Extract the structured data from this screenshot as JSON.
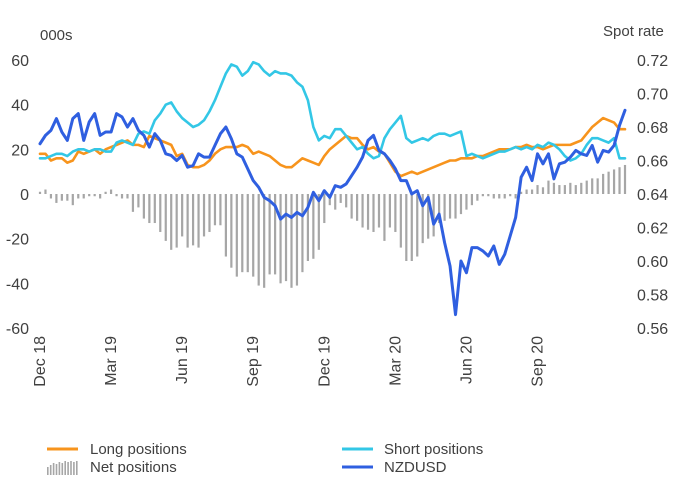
{
  "chart_data": {
    "type": "line",
    "left_axis_unit": "000s",
    "right_axis_unit": "Spot rate",
    "left_ylim": [
      -60,
      60
    ],
    "left_yticks": [
      "60",
      "40",
      "20",
      "0",
      "-20",
      "-40",
      "-60"
    ],
    "right_ylim": [
      0.56,
      0.72
    ],
    "right_yticks": [
      "0.72",
      "0.70",
      "0.68",
      "0.66",
      "0.64",
      "0.62",
      "0.60",
      "0.58",
      "0.56"
    ],
    "x_range": [
      0,
      107
    ],
    "x_ticks": [
      {
        "label": "Dec 18",
        "x": 0
      },
      {
        "label": "Mar 19",
        "x": 13
      },
      {
        "label": "Jun 19",
        "x": 26
      },
      {
        "label": "Sep 19",
        "x": 39
      },
      {
        "label": "Dec 19",
        "x": 52
      },
      {
        "label": "Mar 20",
        "x": 65
      },
      {
        "label": "Jun 20",
        "x": 78
      },
      {
        "label": "Sep 20",
        "x": 91
      }
    ],
    "x_unit": "week index (weekly observations from Dec 2018)",
    "grid": false,
    "legend_position": "bottom",
    "colors": {
      "long": "#f7941d",
      "short": "#33c7e6",
      "net": "#a6a6a6",
      "nzdusd": "#2f5fe0",
      "text": "#404040"
    },
    "series": [
      {
        "name": "Long positions",
        "axis": "left",
        "style": "line",
        "values": [
          18,
          18,
          15,
          16,
          16,
          14,
          15,
          19,
          18,
          19,
          20,
          18,
          20,
          21,
          22,
          23,
          24,
          22,
          22,
          21,
          26,
          25,
          24,
          23,
          22,
          17,
          18,
          13,
          12,
          12,
          13,
          15,
          18,
          20,
          21,
          21,
          21,
          22,
          21,
          18,
          19,
          18,
          17,
          15,
          13,
          12,
          12,
          14,
          16,
          15,
          14,
          13,
          17,
          20,
          22,
          24,
          26,
          25,
          25,
          22,
          20,
          21,
          19,
          18,
          14,
          10,
          8,
          9,
          10,
          9,
          10,
          11,
          12,
          13,
          14,
          15,
          15,
          16,
          16,
          16,
          17,
          17,
          18,
          19,
          20,
          20,
          20,
          21,
          21,
          22,
          21,
          21,
          20,
          21,
          22,
          22,
          22,
          22,
          23,
          24,
          27,
          30,
          32,
          34,
          33,
          32,
          29,
          29
        ]
      },
      {
        "name": "Short positions",
        "axis": "left",
        "style": "line",
        "values": [
          16,
          16,
          17,
          18,
          18,
          17,
          19,
          20,
          20,
          19,
          20,
          20,
          19,
          19,
          23,
          24,
          23,
          22,
          27,
          28,
          27,
          33,
          36,
          40,
          41,
          37,
          34,
          32,
          30,
          31,
          33,
          37,
          42,
          48,
          54,
          58,
          57,
          53,
          55,
          59,
          58,
          55,
          53,
          55,
          54,
          54,
          53,
          50,
          48,
          42,
          30,
          24,
          26,
          25,
          29,
          29,
          26,
          23,
          20,
          21,
          18,
          16,
          17,
          25,
          29,
          32,
          35,
          25,
          23,
          24,
          25,
          24,
          26,
          27,
          27,
          26,
          27,
          28,
          17,
          18,
          17,
          16,
          17,
          18,
          19,
          19,
          20,
          21,
          20,
          21,
          20,
          22,
          21,
          23,
          22,
          20,
          17,
          15,
          16,
          18,
          22,
          25,
          25,
          24,
          23,
          25,
          16,
          16
        ]
      },
      {
        "name": "Net positions",
        "axis": "left",
        "style": "bar",
        "values": [
          1,
          2,
          -2,
          -4,
          -3,
          -3,
          -5,
          -2,
          -2,
          -1,
          -1,
          -2,
          1,
          2,
          -1,
          -2,
          -2,
          -8,
          -6,
          -11,
          -13,
          -13,
          -17,
          -21,
          -25,
          -24,
          -19,
          -24,
          -23,
          -24,
          -19,
          -17,
          -14,
          -14,
          -28,
          -33,
          -37,
          -35,
          -35,
          -37,
          -41,
          -42,
          -36,
          -36,
          -40,
          -39,
          -42,
          -41,
          -35,
          -30,
          -29,
          -25,
          -13,
          -5,
          -7,
          -4,
          -6,
          -11,
          -12,
          -15,
          -16,
          -17,
          -15,
          -21,
          -15,
          -17,
          -24,
          -30,
          -30,
          -28,
          -22,
          -20,
          -19,
          -13,
          -12,
          -11,
          -11,
          -9,
          -7,
          -5,
          -3,
          -1,
          -1,
          -2,
          -2,
          -2,
          -1,
          -2,
          1,
          2,
          2,
          4,
          3,
          6,
          5,
          4,
          4,
          5,
          4,
          5,
          6,
          7,
          7,
          9,
          10,
          11,
          12,
          13
        ]
      },
      {
        "name": "NZDUSD",
        "axis": "right",
        "style": "line",
        "values": [
          0.67,
          0.675,
          0.678,
          0.685,
          0.677,
          0.672,
          0.685,
          0.688,
          0.672,
          0.683,
          0.688,
          0.675,
          0.677,
          0.677,
          0.688,
          0.686,
          0.68,
          0.685,
          0.678,
          0.675,
          0.668,
          0.676,
          0.672,
          0.664,
          0.663,
          0.66,
          0.663,
          0.656,
          0.657,
          0.664,
          0.662,
          0.662,
          0.669,
          0.676,
          0.68,
          0.673,
          0.664,
          0.662,
          0.655,
          0.648,
          0.644,
          0.638,
          0.636,
          0.633,
          0.625,
          0.628,
          0.626,
          0.629,
          0.627,
          0.632,
          0.641,
          0.636,
          0.642,
          0.638,
          0.645,
          0.644,
          0.646,
          0.651,
          0.656,
          0.662,
          0.672,
          0.675,
          0.666,
          0.664,
          0.66,
          0.655,
          0.648,
          0.648,
          0.64,
          0.642,
          0.633,
          0.638,
          0.622,
          0.628,
          0.611,
          0.597,
          0.568,
          0.6,
          0.593,
          0.608,
          0.608,
          0.606,
          0.603,
          0.609,
          0.598,
          0.604,
          0.615,
          0.626,
          0.65,
          0.656,
          0.648,
          0.664,
          0.658,
          0.664,
          0.649,
          0.658,
          0.659,
          0.662,
          0.666,
          0.664,
          0.663,
          0.669,
          0.659,
          0.666,
          0.665,
          0.669,
          0.681,
          0.69
        ]
      }
    ]
  }
}
